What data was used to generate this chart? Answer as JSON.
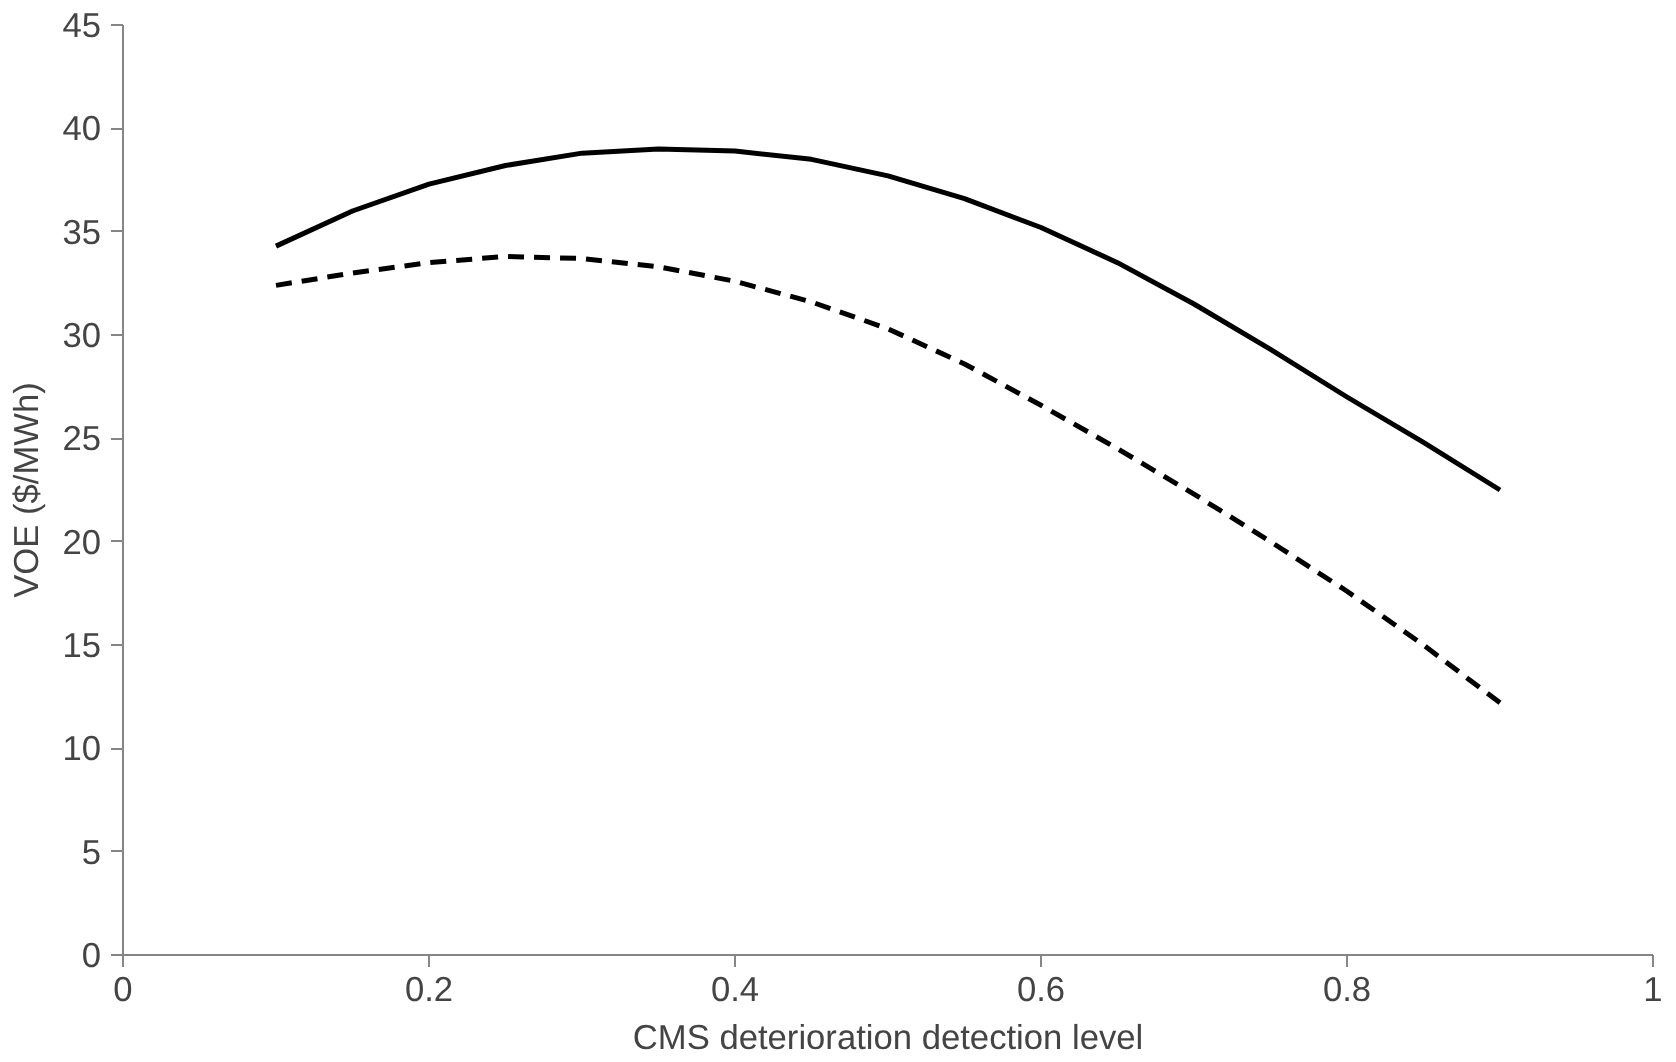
{
  "chart_data": {
    "type": "line",
    "xlabel": "CMS deterioration detection level",
    "ylabel": "VOE ($/MWh)",
    "xlim": [
      0,
      1
    ],
    "xticks": [
      0,
      0.2,
      0.4,
      0.6,
      0.8,
      1
    ],
    "ylim": [
      0,
      45
    ],
    "yticks": [
      0,
      5,
      10,
      15,
      20,
      25,
      30,
      35,
      40,
      45
    ],
    "grid": false,
    "x": [
      0.1,
      0.15,
      0.2,
      0.25,
      0.3,
      0.35,
      0.4,
      0.45,
      0.5,
      0.55,
      0.6,
      0.65,
      0.7,
      0.75,
      0.8,
      0.85,
      0.9
    ],
    "series": [
      {
        "color": "#000000",
        "line_style": "solid",
        "values": [
          34.3,
          36.0,
          37.3,
          38.2,
          38.8,
          39.0,
          38.9,
          38.5,
          37.7,
          36.6,
          35.2,
          33.5,
          31.5,
          29.3,
          27.0,
          24.8,
          22.5
        ]
      },
      {
        "color": "#000000",
        "line_style": "dashed",
        "values": [
          32.4,
          33.0,
          33.5,
          33.8,
          33.7,
          33.3,
          32.6,
          31.6,
          30.3,
          28.6,
          26.6,
          24.5,
          22.3,
          20.0,
          17.6,
          15.0,
          12.2
        ]
      }
    ]
  }
}
